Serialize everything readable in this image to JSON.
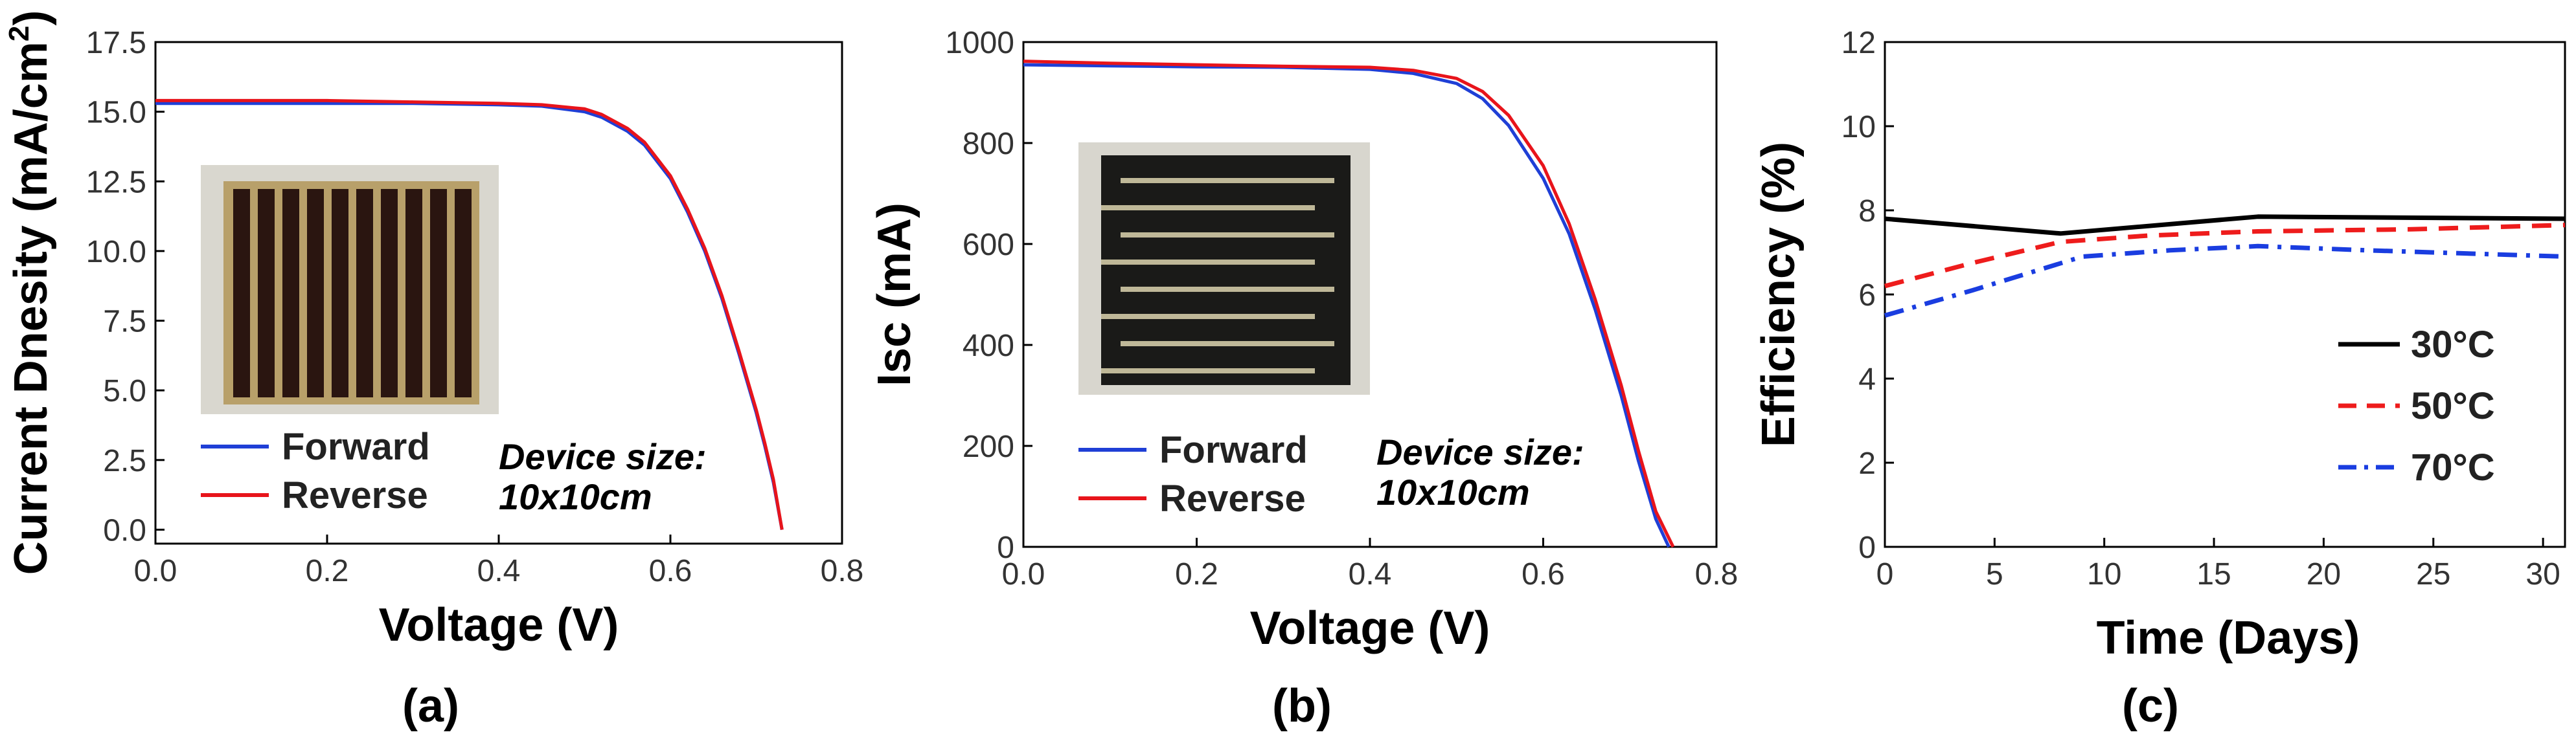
{
  "chart_data": [
    {
      "panel": "(a)",
      "type": "line",
      "xlabel": "Voltage (V)",
      "ylabel": "Current Dnesity (mA/cm",
      "ylabel_sup": "2",
      "ylabel_close": ")",
      "xlim": [
        0.0,
        0.8
      ],
      "ylim": [
        -0.5,
        17.5
      ],
      "xticks": [
        0.0,
        0.2,
        0.4,
        0.6,
        0.8
      ],
      "xtick_labels": [
        "0.0",
        "0.2",
        "0.4",
        "0.6",
        "0.8"
      ],
      "yticks": [
        0.0,
        2.5,
        5.0,
        7.5,
        10.0,
        12.5,
        15.0,
        17.5
      ],
      "ytick_labels": [
        "0.0",
        "2.5",
        "5.0",
        "7.5",
        "10.0",
        "12.5",
        "15.0",
        "17.5"
      ],
      "legend_position": "bottom-left",
      "annotation": [
        "Device size:",
        "10x10cm"
      ],
      "series": [
        {
          "name": "Forward",
          "color": "#1f3fd6",
          "x": [
            0,
            0.1,
            0.2,
            0.3,
            0.4,
            0.45,
            0.5,
            0.52,
            0.55,
            0.57,
            0.6,
            0.62,
            0.64,
            0.66,
            0.68,
            0.7,
            0.71,
            0.72,
            0.73
          ],
          "y": [
            15.3,
            15.3,
            15.3,
            15.3,
            15.25,
            15.2,
            15.0,
            14.8,
            14.3,
            13.8,
            12.6,
            11.4,
            10.0,
            8.3,
            6.3,
            4.2,
            3.0,
            1.7,
            0.0
          ]
        },
        {
          "name": "Reverse",
          "color": "#e8141b",
          "x": [
            0,
            0.1,
            0.2,
            0.3,
            0.4,
            0.45,
            0.5,
            0.52,
            0.55,
            0.57,
            0.6,
            0.62,
            0.64,
            0.66,
            0.68,
            0.7,
            0.71,
            0.72,
            0.73
          ],
          "y": [
            15.4,
            15.4,
            15.4,
            15.35,
            15.3,
            15.25,
            15.1,
            14.9,
            14.4,
            13.9,
            12.7,
            11.5,
            10.1,
            8.4,
            6.4,
            4.3,
            3.1,
            1.8,
            0.0
          ]
        }
      ]
    },
    {
      "panel": "(b)",
      "type": "line",
      "xlabel": "Voltage (V)",
      "ylabel": "Isc (mA)",
      "xlim": [
        0.0,
        0.8
      ],
      "ylim": [
        0,
        1000
      ],
      "xticks": [
        0.0,
        0.2,
        0.4,
        0.6,
        0.8
      ],
      "xtick_labels": [
        "0.0",
        "0.2",
        "0.4",
        "0.6",
        "0.8"
      ],
      "yticks": [
        0,
        200,
        400,
        600,
        800,
        1000
      ],
      "ytick_labels": [
        "0",
        "200",
        "400",
        "600",
        "800",
        "1000"
      ],
      "legend_position": "bottom-left",
      "annotation": [
        "Device size:",
        "10x10cm"
      ],
      "series": [
        {
          "name": "Forward",
          "color": "#1f3fd6",
          "x": [
            0,
            0.1,
            0.2,
            0.3,
            0.4,
            0.45,
            0.5,
            0.53,
            0.56,
            0.6,
            0.63,
            0.66,
            0.69,
            0.71,
            0.73,
            0.745
          ],
          "y": [
            955,
            953,
            951,
            950,
            946,
            938,
            918,
            888,
            835,
            730,
            620,
            470,
            300,
            170,
            55,
            0
          ]
        },
        {
          "name": "Reverse",
          "color": "#e8141b",
          "x": [
            0,
            0.1,
            0.2,
            0.3,
            0.4,
            0.45,
            0.5,
            0.53,
            0.56,
            0.6,
            0.63,
            0.66,
            0.69,
            0.71,
            0.73,
            0.75
          ],
          "y": [
            962,
            958,
            955,
            952,
            950,
            944,
            928,
            902,
            855,
            755,
            640,
            490,
            320,
            190,
            70,
            0
          ]
        }
      ]
    },
    {
      "panel": "(c)",
      "type": "line",
      "xlabel": "Time (Days)",
      "ylabel": "Efficiency (%)",
      "xlim": [
        0,
        31
      ],
      "ylim": [
        0,
        12
      ],
      "xticks": [
        0,
        5,
        10,
        15,
        20,
        25,
        30
      ],
      "xtick_labels": [
        "0",
        "5",
        "10",
        "15",
        "20",
        "25",
        "30"
      ],
      "yticks": [
        0,
        2,
        4,
        6,
        8,
        10,
        12
      ],
      "ytick_labels": [
        "0",
        "2",
        "4",
        "6",
        "8",
        "10",
        "12"
      ],
      "legend_position": "bottom-right",
      "series": [
        {
          "name": "30°C",
          "color": "#000000",
          "dash": "solid",
          "x": [
            0,
            8,
            17,
            31
          ],
          "y": [
            7.8,
            7.45,
            7.85,
            7.8
          ]
        },
        {
          "name": "50°C",
          "color": "#ee1c1c",
          "dash": "dashed",
          "x": [
            0,
            4,
            8,
            12,
            17,
            24,
            31
          ],
          "y": [
            6.2,
            6.75,
            7.25,
            7.4,
            7.5,
            7.55,
            7.65
          ]
        },
        {
          "name": "70°C",
          "color": "#1a3de0",
          "dash": "dashdot",
          "x": [
            0,
            4,
            9,
            13,
            17,
            22,
            31
          ],
          "y": [
            5.5,
            6.1,
            6.9,
            7.05,
            7.15,
            7.05,
            6.9
          ]
        }
      ]
    }
  ]
}
